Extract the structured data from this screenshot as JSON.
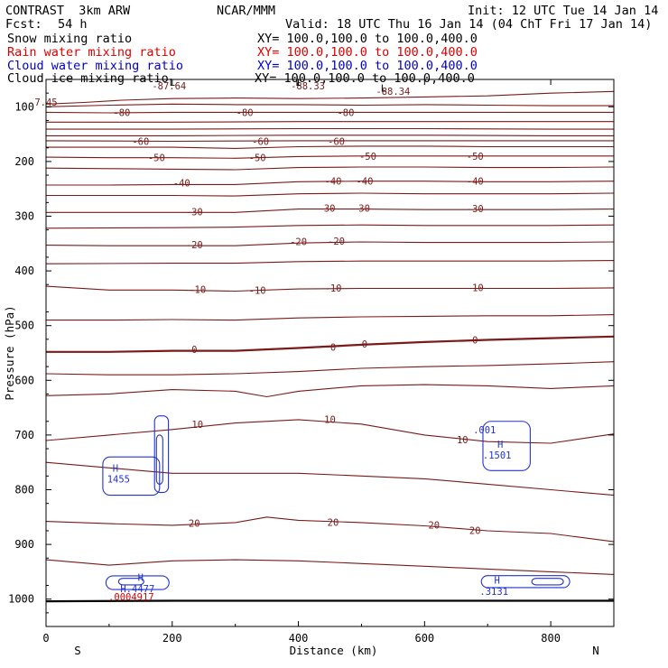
{
  "header": {
    "model": "CONTRAST  3km ARW",
    "org": "NCAR/MMM",
    "init": "Init: 12 UTC Tue 14 Jan 14",
    "fcst_label": "Fcst:",
    "fcst_value": "54 h",
    "valid": "Valid: 18 UTC Thu 16 Jan 14 (04 ChT Fri 17 Jan 14)"
  },
  "legend": [
    {
      "name": "Snow mixing ratio",
      "xy": "XY= 100.0,100.0 to 100.0,400.0",
      "color": "#000000"
    },
    {
      "name": "Rain water mixing ratio",
      "xy": "XY= 100.0,100.0 to 100.0,400.0",
      "color": "#dd0000"
    },
    {
      "name": "Cloud water mixing ratio",
      "xy": "XY= 100.0,100.0 to 100.0,400.0",
      "color": "#0000cc"
    },
    {
      "name": "Cloud ice mixing ratio",
      "xy": "XY= 100.0,100.0 to 100.0,400.0",
      "color": "#000000"
    }
  ],
  "colors": {
    "temperature": "#7a1a1a",
    "cloud_water": "#2233cc",
    "rain_water": "#dd0000",
    "ice": "#000000"
  },
  "chart_data": {
    "type": "contour-cross-section",
    "xlabel": "Distance (km)",
    "ylabel": "Pressure (hPa)",
    "xlim": [
      0,
      900
    ],
    "ylim": [
      1050,
      50
    ],
    "x_ticks": [
      0,
      200,
      400,
      600,
      800
    ],
    "y_ticks": [
      100,
      200,
      300,
      400,
      500,
      600,
      700,
      800,
      900,
      1000
    ],
    "y_scale": "linear",
    "grid": false,
    "end_labels": {
      "left": "S",
      "right": "N"
    },
    "temperature_contour_labels": [
      {
        "x": 0,
        "p": 93,
        "text": "7.45"
      },
      {
        "x": 195,
        "p": 63,
        "text": "-87.64"
      },
      {
        "x": 415,
        "p": 63,
        "text": "-88.33"
      },
      {
        "x": 550,
        "p": 73,
        "text": "-88.34"
      },
      {
        "x": 120,
        "p": 112,
        "text": "-80"
      },
      {
        "x": 315,
        "p": 112,
        "text": "-80"
      },
      {
        "x": 475,
        "p": 112,
        "text": "-80"
      },
      {
        "x": 150,
        "p": 165,
        "text": "-60"
      },
      {
        "x": 340,
        "p": 165,
        "text": "-60"
      },
      {
        "x": 460,
        "p": 165,
        "text": "-60"
      },
      {
        "x": 175,
        "p": 194,
        "text": "-50"
      },
      {
        "x": 335,
        "p": 194,
        "text": "-50"
      },
      {
        "x": 510,
        "p": 192,
        "text": "-50"
      },
      {
        "x": 680,
        "p": 192,
        "text": "-50"
      },
      {
        "x": 215,
        "p": 241,
        "text": "-40"
      },
      {
        "x": 455,
        "p": 237,
        "text": "-40"
      },
      {
        "x": 505,
        "p": 237,
        "text": "-40"
      },
      {
        "x": 680,
        "p": 237,
        "text": "-40"
      },
      {
        "x": 235,
        "p": 293,
        "text": "-30"
      },
      {
        "x": 445,
        "p": 287,
        "text": "-30"
      },
      {
        "x": 500,
        "p": 287,
        "text": "-30"
      },
      {
        "x": 680,
        "p": 288,
        "text": "-30"
      },
      {
        "x": 235,
        "p": 354,
        "text": "-20"
      },
      {
        "x": 400,
        "p": 348,
        "text": "-20"
      },
      {
        "x": 460,
        "p": 347,
        "text": "-20"
      },
      {
        "x": 240,
        "p": 435,
        "text": "-10"
      },
      {
        "x": 335,
        "p": 437,
        "text": "-10"
      },
      {
        "x": 455,
        "p": 433,
        "text": "-10"
      },
      {
        "x": 680,
        "p": 432,
        "text": "-10"
      },
      {
        "x": 235,
        "p": 545,
        "text": "0"
      },
      {
        "x": 455,
        "p": 541,
        "text": "0"
      },
      {
        "x": 505,
        "p": 535,
        "text": "0"
      },
      {
        "x": 680,
        "p": 528,
        "text": "0"
      },
      {
        "x": 240,
        "p": 682,
        "text": "10"
      },
      {
        "x": 450,
        "p": 673,
        "text": "10"
      },
      {
        "x": 660,
        "p": 710,
        "text": "10"
      },
      {
        "x": 235,
        "p": 863,
        "text": "20"
      },
      {
        "x": 455,
        "p": 861,
        "text": "20"
      },
      {
        "x": 615,
        "p": 866,
        "text": "20"
      },
      {
        "x": 680,
        "p": 876,
        "text": "20"
      }
    ],
    "cloud_water_labels": [
      {
        "x": 110,
        "p": 762,
        "text": "H"
      },
      {
        "x": 115,
        "p": 782,
        "text": "1455"
      },
      {
        "x": 695,
        "p": 692,
        "text": ".001"
      },
      {
        "x": 720,
        "p": 718,
        "text": "H"
      },
      {
        "x": 715,
        "p": 738,
        "text": ".1501"
      },
      {
        "x": 150,
        "p": 962,
        "text": "H"
      },
      {
        "x": 145,
        "p": 982,
        "text": "H.4477"
      },
      {
        "x": 715,
        "p": 967,
        "text": "H"
      },
      {
        "x": 710,
        "p": 987,
        "text": ".3131"
      }
    ],
    "rain_water_labels": [
      {
        "x": 135,
        "p": 997,
        "text": ".0004917"
      }
    ],
    "ice_labels": [
      {
        "x": 200,
        "p": 57,
        "text": "L"
      },
      {
        "x": 400,
        "p": 57,
        "text": "L"
      },
      {
        "x": 535,
        "p": 67,
        "text": "L"
      }
    ],
    "temperature_isolines": [
      [
        [
          0,
          95
        ],
        [
          60,
          92
        ],
        [
          120,
          88
        ],
        [
          200,
          85
        ],
        [
          300,
          84
        ],
        [
          400,
          85
        ],
        [
          500,
          84
        ],
        [
          600,
          82
        ],
        [
          700,
          80
        ],
        [
          800,
          75
        ],
        [
          900,
          72
        ]
      ],
      [
        [
          0,
          100
        ],
        [
          100,
          97
        ],
        [
          200,
          95
        ],
        [
          300,
          96
        ],
        [
          400,
          96
        ],
        [
          500,
          97
        ],
        [
          600,
          96
        ],
        [
          700,
          97
        ],
        [
          800,
          98
        ],
        [
          900,
          98
        ]
      ],
      [
        [
          0,
          110
        ],
        [
          100,
          111
        ],
        [
          200,
          110
        ],
        [
          300,
          110
        ],
        [
          400,
          110
        ],
        [
          500,
          110
        ],
        [
          600,
          110
        ],
        [
          700,
          110
        ],
        [
          800,
          110
        ],
        [
          900,
          110
        ]
      ],
      [
        [
          0,
          128
        ],
        [
          200,
          128
        ],
        [
          400,
          127
        ],
        [
          600,
          127
        ],
        [
          800,
          127
        ],
        [
          900,
          127
        ]
      ],
      [
        [
          0,
          141
        ],
        [
          200,
          141
        ],
        [
          400,
          140
        ],
        [
          600,
          140
        ],
        [
          800,
          141
        ],
        [
          900,
          141
        ]
      ],
      [
        [
          0,
          153
        ],
        [
          200,
          153
        ],
        [
          400,
          152
        ],
        [
          600,
          152
        ],
        [
          800,
          153
        ],
        [
          900,
          153
        ]
      ],
      [
        [
          0,
          162
        ],
        [
          200,
          163
        ],
        [
          400,
          162
        ],
        [
          600,
          162
        ],
        [
          800,
          162
        ],
        [
          900,
          162
        ]
      ],
      [
        [
          0,
          174
        ],
        [
          100,
          174
        ],
        [
          200,
          174
        ],
        [
          300,
          176
        ],
        [
          400,
          173
        ],
        [
          500,
          172
        ],
        [
          600,
          172
        ],
        [
          700,
          173
        ],
        [
          800,
          173
        ],
        [
          900,
          173
        ]
      ],
      [
        [
          0,
          192
        ],
        [
          100,
          193
        ],
        [
          200,
          193
        ],
        [
          300,
          194
        ],
        [
          400,
          191
        ],
        [
          500,
          190
        ],
        [
          600,
          190
        ],
        [
          700,
          190
        ],
        [
          800,
          190
        ],
        [
          900,
          190
        ]
      ],
      [
        [
          0,
          212
        ],
        [
          100,
          213
        ],
        [
          200,
          214
        ],
        [
          300,
          215
        ],
        [
          400,
          211
        ],
        [
          500,
          210
        ],
        [
          600,
          210
        ],
        [
          700,
          211
        ],
        [
          800,
          211
        ],
        [
          900,
          210
        ]
      ],
      [
        [
          0,
          243
        ],
        [
          100,
          243
        ],
        [
          200,
          242
        ],
        [
          300,
          242
        ],
        [
          400,
          237
        ],
        [
          500,
          236
        ],
        [
          600,
          236
        ],
        [
          700,
          237
        ],
        [
          800,
          237
        ],
        [
          900,
          236
        ]
      ],
      [
        [
          0,
          262
        ],
        [
          200,
          262
        ],
        [
          300,
          263
        ],
        [
          400,
          259
        ],
        [
          500,
          258
        ],
        [
          600,
          259
        ],
        [
          800,
          259
        ],
        [
          900,
          258
        ]
      ],
      [
        [
          0,
          293
        ],
        [
          100,
          293
        ],
        [
          200,
          293
        ],
        [
          300,
          293
        ],
        [
          400,
          287
        ],
        [
          500,
          287
        ],
        [
          600,
          288
        ],
        [
          700,
          288
        ],
        [
          800,
          288
        ],
        [
          900,
          287
        ]
      ],
      [
        [
          0,
          322
        ],
        [
          200,
          321
        ],
        [
          300,
          320
        ],
        [
          400,
          317
        ],
        [
          500,
          316
        ],
        [
          600,
          317
        ],
        [
          800,
          317
        ],
        [
          900,
          316
        ]
      ],
      [
        [
          0,
          353
        ],
        [
          100,
          354
        ],
        [
          200,
          354
        ],
        [
          300,
          354
        ],
        [
          400,
          349
        ],
        [
          500,
          347
        ],
        [
          600,
          348
        ],
        [
          700,
          348
        ],
        [
          800,
          348
        ],
        [
          900,
          347
        ]
      ],
      [
        [
          0,
          387
        ],
        [
          200,
          386
        ],
        [
          300,
          386
        ],
        [
          400,
          383
        ],
        [
          500,
          382
        ],
        [
          600,
          382
        ],
        [
          800,
          382
        ],
        [
          900,
          381
        ]
      ],
      [
        [
          0,
          428
        ],
        [
          100,
          435
        ],
        [
          200,
          435
        ],
        [
          300,
          437
        ],
        [
          400,
          433
        ],
        [
          500,
          432
        ],
        [
          600,
          432
        ],
        [
          700,
          432
        ],
        [
          800,
          432
        ],
        [
          900,
          431
        ]
      ],
      [
        [
          0,
          490
        ],
        [
          100,
          490
        ],
        [
          200,
          489
        ],
        [
          300,
          490
        ],
        [
          400,
          486
        ],
        [
          500,
          484
        ],
        [
          600,
          483
        ],
        [
          700,
          482
        ],
        [
          800,
          482
        ],
        [
          900,
          480
        ]
      ],
      [
        [
          0,
          548
        ],
        [
          100,
          548
        ],
        [
          200,
          546
        ],
        [
          300,
          546
        ],
        [
          400,
          541
        ],
        [
          500,
          535
        ],
        [
          600,
          530
        ],
        [
          700,
          526
        ],
        [
          800,
          523
        ],
        [
          900,
          520
        ]
      ],
      [
        [
          0,
          588
        ],
        [
          100,
          590
        ],
        [
          200,
          590
        ],
        [
          300,
          588
        ],
        [
          400,
          584
        ],
        [
          500,
          578
        ],
        [
          600,
          575
        ],
        [
          700,
          573
        ],
        [
          800,
          570
        ],
        [
          900,
          566
        ]
      ],
      [
        [
          0,
          628
        ],
        [
          100,
          625
        ],
        [
          200,
          617
        ],
        [
          300,
          620
        ],
        [
          350,
          630
        ],
        [
          400,
          620
        ],
        [
          500,
          610
        ],
        [
          600,
          608
        ],
        [
          700,
          610
        ],
        [
          800,
          615
        ],
        [
          900,
          610
        ]
      ],
      [
        [
          0,
          710
        ],
        [
          100,
          700
        ],
        [
          200,
          690
        ],
        [
          300,
          678
        ],
        [
          400,
          672
        ],
        [
          500,
          680
        ],
        [
          600,
          700
        ],
        [
          700,
          712
        ],
        [
          800,
          715
        ],
        [
          900,
          698
        ]
      ],
      [
        [
          0,
          750
        ],
        [
          100,
          760
        ],
        [
          200,
          770
        ],
        [
          300,
          770
        ],
        [
          400,
          770
        ],
        [
          500,
          775
        ],
        [
          600,
          780
        ],
        [
          700,
          790
        ],
        [
          800,
          800
        ],
        [
          900,
          810
        ]
      ],
      [
        [
          0,
          858
        ],
        [
          100,
          862
        ],
        [
          200,
          865
        ],
        [
          300,
          860
        ],
        [
          350,
          850
        ],
        [
          400,
          856
        ],
        [
          500,
          860
        ],
        [
          600,
          866
        ],
        [
          700,
          875
        ],
        [
          800,
          880
        ],
        [
          900,
          895
        ]
      ],
      [
        [
          0,
          928
        ],
        [
          100,
          938
        ],
        [
          200,
          930
        ],
        [
          300,
          928
        ],
        [
          400,
          930
        ],
        [
          500,
          935
        ],
        [
          600,
          940
        ],
        [
          700,
          945
        ],
        [
          800,
          950
        ],
        [
          900,
          955
        ]
      ],
      [
        [
          0,
          1004
        ],
        [
          200,
          1003
        ],
        [
          400,
          1003
        ],
        [
          600,
          1003
        ],
        [
          800,
          1003
        ],
        [
          900,
          1003
        ]
      ]
    ]
  }
}
